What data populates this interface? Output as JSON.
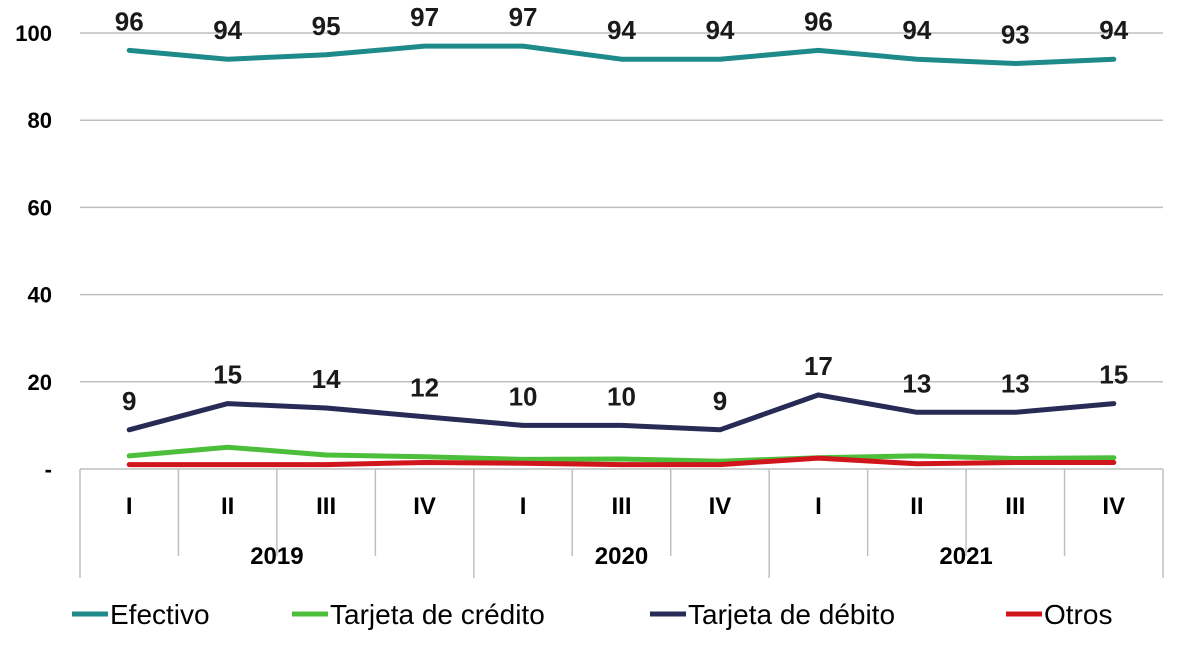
{
  "chart_data": {
    "type": "line",
    "categories": [
      "I",
      "II",
      "III",
      "IV",
      "I",
      "III",
      "IV",
      "I",
      "II",
      "III",
      "IV"
    ],
    "groups": [
      {
        "label": "2019",
        "count": 4
      },
      {
        "label": "2020",
        "count": 3
      },
      {
        "label": "2021",
        "count": 4
      }
    ],
    "ylim": [
      0,
      100
    ],
    "yticks": [
      0,
      20,
      40,
      60,
      80,
      100
    ],
    "ytick_labels": [
      "-",
      "20",
      "40",
      "60",
      "80",
      "100"
    ],
    "grid": true,
    "legend": "bottom",
    "series": [
      {
        "name": "Efectivo",
        "color": "#1f8a8a",
        "values": [
          96,
          94,
          95,
          97,
          97,
          94,
          94,
          96,
          94,
          93,
          94
        ],
        "labels": [
          "96",
          "94",
          "95",
          "97",
          "97",
          "94",
          "94",
          "96",
          "94",
          "93",
          "94"
        ]
      },
      {
        "name": "Tarjeta de crédito",
        "color": "#4bbf3a",
        "values": [
          3,
          5,
          3.2,
          2.8,
          2.2,
          2.3,
          1.8,
          2.6,
          3,
          2.4,
          2.6
        ]
      },
      {
        "name": "Tarjeta de débito",
        "color": "#272b55",
        "values": [
          9,
          15,
          14,
          12,
          10,
          10,
          9,
          17,
          13,
          13,
          15
        ],
        "labels": [
          "9",
          "15",
          "14",
          "12",
          "10",
          "10",
          "9",
          "17",
          "13",
          "13",
          "15"
        ]
      },
      {
        "name": "Otros",
        "color": "#d0161c",
        "values": [
          1,
          1,
          1,
          1.5,
          1.3,
          1,
          1,
          2.5,
          1.2,
          1.5,
          1.5
        ]
      }
    ]
  }
}
